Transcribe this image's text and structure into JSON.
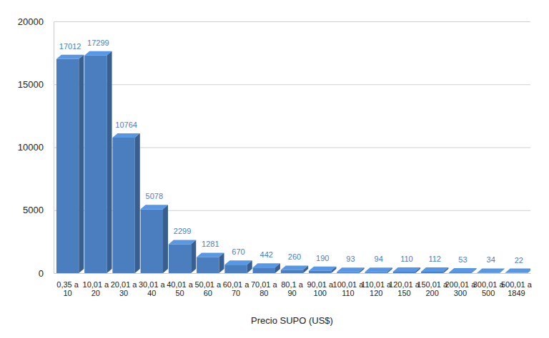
{
  "chart_data": {
    "type": "bar",
    "x_label": "Precio SUPO (US$)",
    "categories": [
      "0,35 a 10",
      "10,01 a 20",
      "20,01 a 30",
      "30,01 a 40",
      "40,01 a 50",
      "50,01 a 60",
      "60,01 a 70",
      "70,01 a 80",
      "80,1 a 90",
      "90,01 a 100",
      "100,01 a 110",
      "110,01 a 120",
      "120,01 a 150",
      "150,01 a 200",
      "200,01 a 300",
      "300,01 a 500",
      "500,01 a 1849"
    ],
    "values": [
      17012,
      17299,
      10764,
      5078,
      2299,
      1281,
      670,
      442,
      260,
      190,
      93,
      94,
      110,
      112,
      53,
      34,
      22
    ],
    "color": "#4a7ebf",
    "ylim": [
      0,
      20000
    ],
    "yticks": [
      0,
      5000,
      10000,
      15000,
      20000
    ],
    "grid": true,
    "data_labels": true
  }
}
